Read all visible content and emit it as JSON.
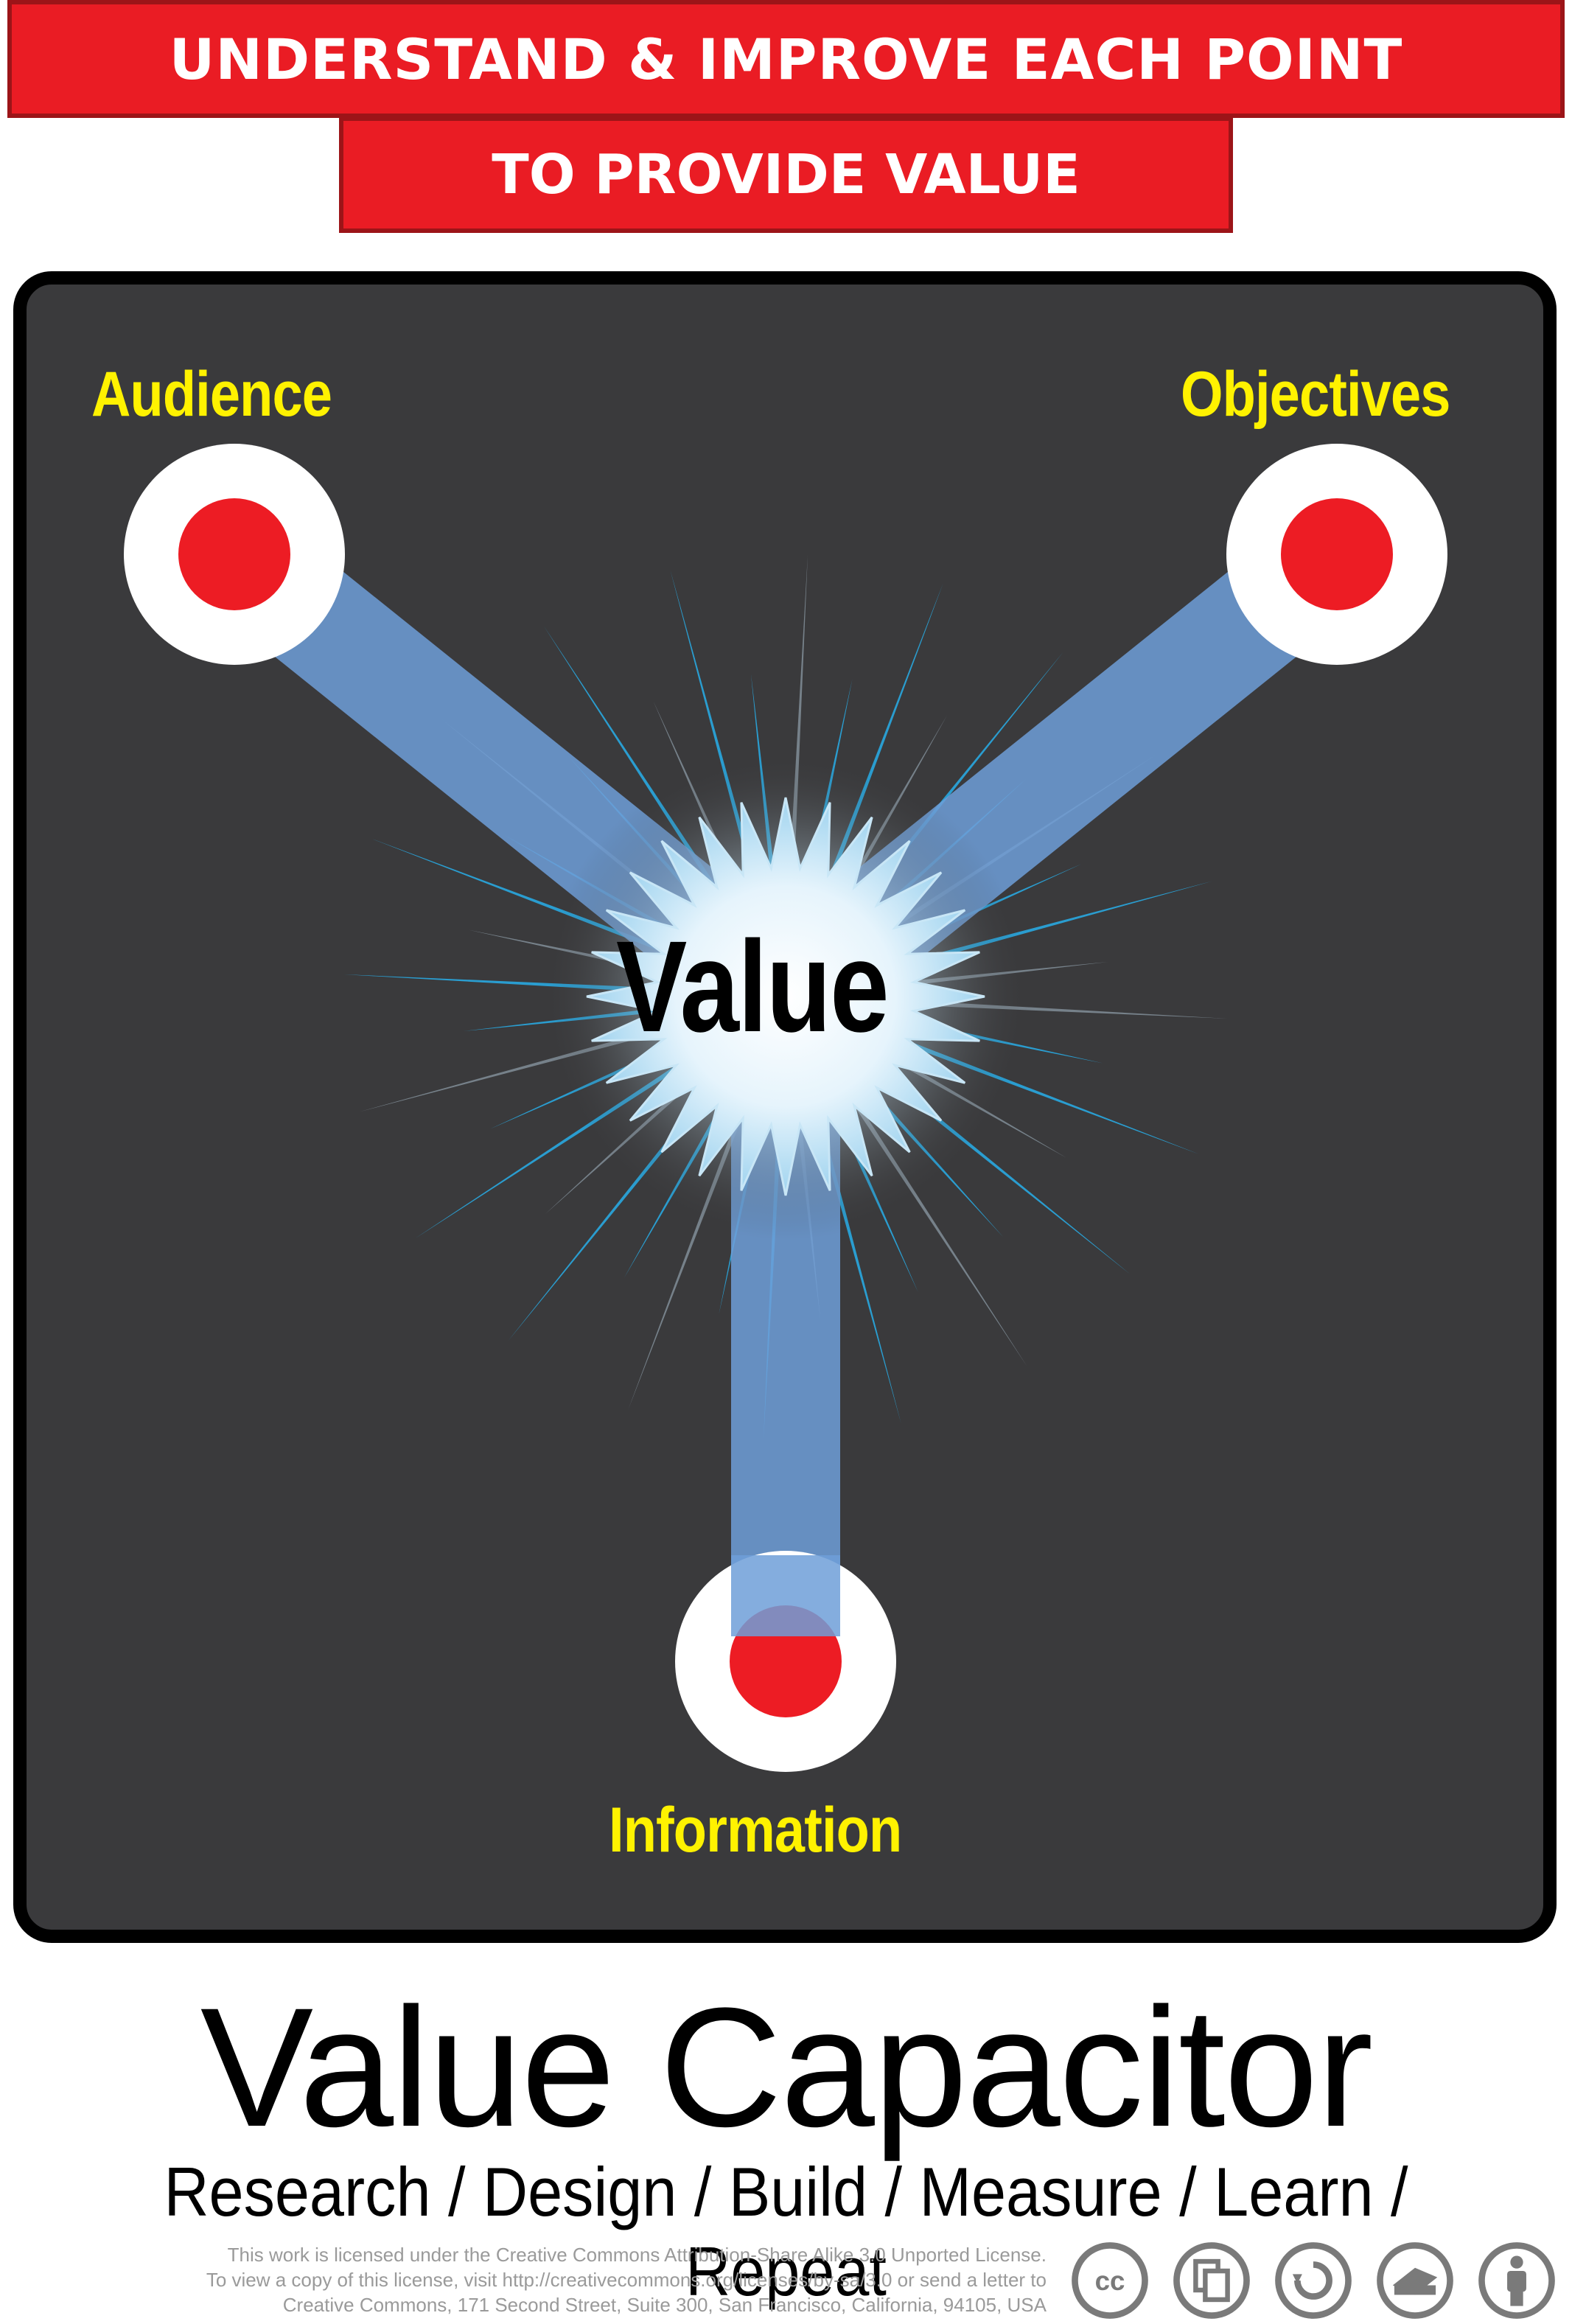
{
  "banner": {
    "top_text": "UNDERSTAND & IMPROVE EACH POINT",
    "sub_text": "TO PROVIDE VALUE"
  },
  "nodes": {
    "audience": "Audience",
    "objectives": "Objectives",
    "information": "Information"
  },
  "center": {
    "label": "Value"
  },
  "title": "Value Capacitor",
  "steps": "Research / Design / Build / Measure / Learn / Repeat",
  "license": {
    "line1": "This work is licensed under the Creative Commons Attribution-Share Alike 3.0 Unported License.",
    "line2": "To view a copy of this license, visit http://creativecommons.org/licenses/by-sa/3.0 or send a letter to",
    "line3": "Creative Commons, 171 Second Street, Suite 300, San Francisco, California, 94105, USA"
  },
  "cc_icons": [
    "cc-icon",
    "copy-icon",
    "share-alike-icon",
    "commercial-icon",
    "attribution-icon"
  ],
  "colors": {
    "banner_red": "#ea1c24",
    "panel_bg": "#3a3a3c",
    "label_yellow": "#fff200",
    "node_red": "#ed1c24",
    "beam_blue": "#6f9fd8",
    "spark_blue": "#29a8e0"
  }
}
